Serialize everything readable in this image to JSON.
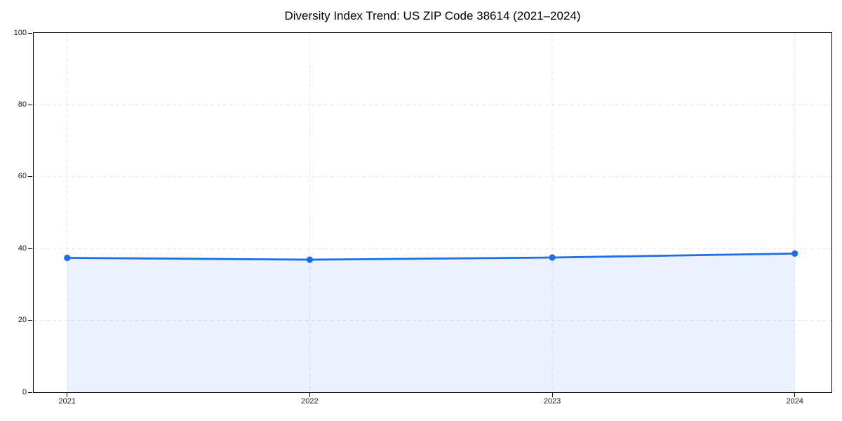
{
  "chart_data": {
    "type": "area",
    "title": "Diversity Index Trend: US ZIP Code 38614 (2021–2024)",
    "x": [
      "2021",
      "2022",
      "2023",
      "2024"
    ],
    "series": [
      {
        "name": "Diversity Index",
        "values": [
          37.4,
          36.9,
          37.5,
          38.6
        ]
      }
    ],
    "xlabel": "",
    "ylabel": "",
    "ylim": [
      0,
      100
    ],
    "yticks": [
      0,
      20,
      40,
      60,
      80,
      100
    ],
    "grid": "dashed-both-axes",
    "legend": "none",
    "colors": {
      "line": "#1e6ee6",
      "fill": "#1e6ee6",
      "fill_opacity": 0.09,
      "grid": "#e3e3e3",
      "axis": "#000000",
      "tick_text": "#1a1a1a",
      "background": "#ffffff"
    }
  }
}
